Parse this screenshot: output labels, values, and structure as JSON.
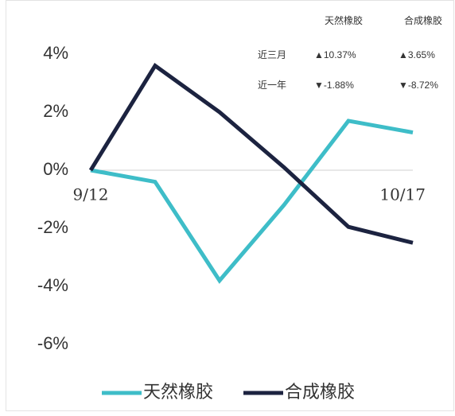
{
  "chart_data": {
    "type": "line",
    "categories": [
      "9/12",
      null,
      null,
      null,
      null,
      "10/17"
    ],
    "series": [
      {
        "name": "天然橡胶",
        "color": "#3ebdc8",
        "values": [
          0,
          -0.4,
          -3.8,
          -1.2,
          1.7,
          1.3
        ]
      },
      {
        "name": "合成橡胶",
        "color": "#1c2340",
        "values": [
          0,
          3.6,
          2.0,
          0.1,
          -1.95,
          -2.5
        ]
      }
    ],
    "ylim": [
      -6,
      4
    ],
    "yticks": [
      {
        "value": -6,
        "label": "-6%"
      },
      {
        "value": -4,
        "label": "-4%"
      },
      {
        "value": -2,
        "label": "-2%"
      },
      {
        "value": 0,
        "label": "0%"
      },
      {
        "value": 2,
        "label": "2%"
      },
      {
        "value": 4,
        "label": "4%"
      }
    ],
    "legend": "bottom",
    "table": {
      "columns": [
        "天然橡胶",
        "合成橡胶"
      ],
      "rows": [
        {
          "label": "近三月",
          "values": [
            "▲10.37%",
            "▲3.65%"
          ]
        },
        {
          "label": "近一年",
          "values": [
            "▼-1.88%",
            "▼-8.72%"
          ]
        }
      ]
    }
  }
}
